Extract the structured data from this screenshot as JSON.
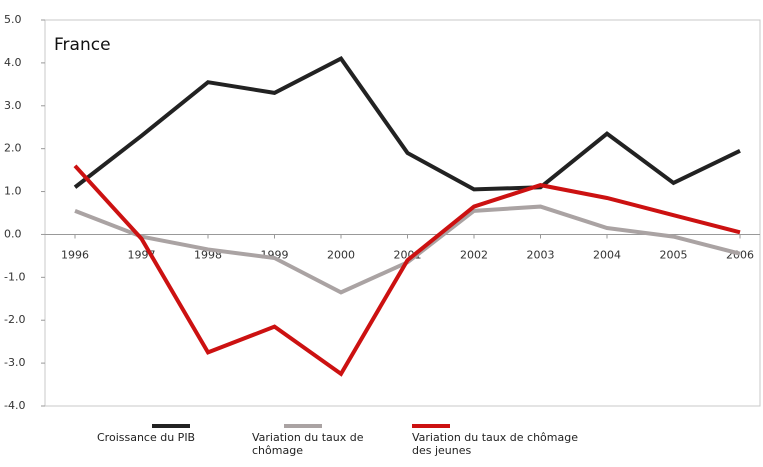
{
  "chart_data": {
    "type": "line",
    "title": "France",
    "categories": [
      "1996",
      "1997",
      "1998",
      "1999",
      "2000",
      "2001",
      "2002",
      "2003",
      "2004",
      "2005",
      "2006"
    ],
    "series": [
      {
        "name": "Croissance du PIB",
        "color": "#222222",
        "values": [
          1.1,
          2.3,
          3.55,
          3.3,
          4.1,
          1.9,
          1.05,
          1.1,
          2.35,
          1.2,
          1.95
        ]
      },
      {
        "name": "Variation du taux de chômage",
        "color": "#aaa3a3",
        "values": [
          0.55,
          -0.05,
          -0.35,
          -0.55,
          -1.35,
          -0.65,
          0.55,
          0.65,
          0.15,
          -0.05,
          -0.45
        ]
      },
      {
        "name": "Variation du taux de chômage des jeunes",
        "color": "#cc1111",
        "values": [
          1.6,
          -0.1,
          -2.75,
          -2.15,
          -3.25,
          -0.6,
          0.65,
          1.15,
          0.85,
          0.45,
          0.05
        ]
      }
    ],
    "ylim": [
      -4,
      5
    ],
    "yticks": [
      {
        "value": -4,
        "label": "-4.0"
      },
      {
        "value": -3,
        "label": "-3.0"
      },
      {
        "value": -2,
        "label": "-2.0"
      },
      {
        "value": -1,
        "label": "-1.0"
      },
      {
        "value": 0,
        "label": "0.0"
      },
      {
        "value": 1,
        "label": "1.0"
      },
      {
        "value": 2,
        "label": "2.0"
      },
      {
        "value": 3,
        "label": "3.0"
      },
      {
        "value": 4,
        "label": "4.0"
      },
      {
        "value": 5,
        "label": "5.0"
      }
    ]
  }
}
